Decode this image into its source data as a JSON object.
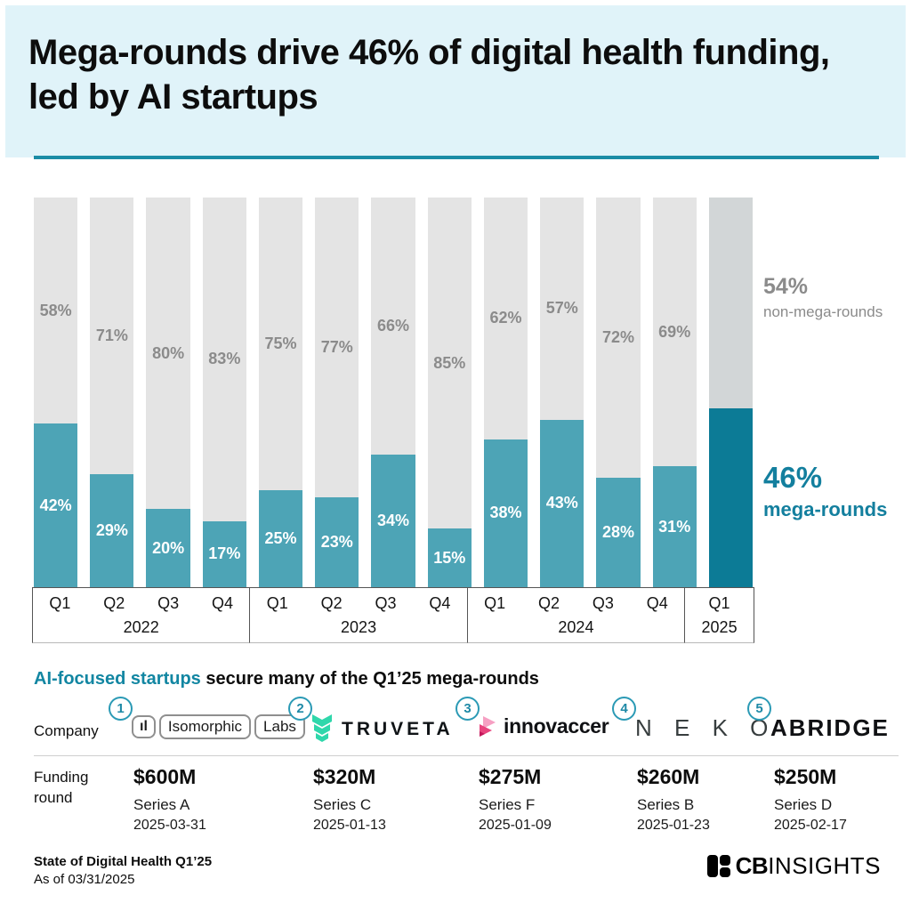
{
  "header": {
    "title": "Mega-rounds drive 46% of digital health funding, led by AI startups"
  },
  "colors": {
    "header_bg": "#e0f3f9",
    "accent_rule": "#1b8ca6",
    "mega_bar": "#4da4b6",
    "mega_bar_highlight": "#0c7b96",
    "non_mega_bar": "#e4e4e4",
    "non_mega_bar_highlight": "#d2d6d7",
    "gray_label": "#8b8b8b",
    "teal_text": "#137f9e"
  },
  "chart_data": {
    "type": "bar",
    "stacked": true,
    "unit": "%",
    "ylim": [
      0,
      100
    ],
    "grid": false,
    "legend_position": "right",
    "x": [
      "Q1 2022",
      "Q2 2022",
      "Q3 2022",
      "Q4 2022",
      "Q1 2023",
      "Q2 2023",
      "Q3 2023",
      "Q4 2023",
      "Q1 2024",
      "Q2 2024",
      "Q3 2024",
      "Q4 2024",
      "Q1 2025"
    ],
    "year_groups": [
      {
        "year": "2022",
        "quarters": [
          "Q1",
          "Q2",
          "Q3",
          "Q4"
        ]
      },
      {
        "year": "2023",
        "quarters": [
          "Q1",
          "Q2",
          "Q3",
          "Q4"
        ]
      },
      {
        "year": "2024",
        "quarters": [
          "Q1",
          "Q2",
          "Q3",
          "Q4"
        ]
      },
      {
        "year": "2025",
        "quarters": [
          "Q1"
        ]
      }
    ],
    "series": [
      {
        "name": "mega-rounds",
        "values": [
          42,
          29,
          20,
          17,
          25,
          23,
          34,
          15,
          38,
          43,
          28,
          31,
          46
        ]
      },
      {
        "name": "non-mega-rounds",
        "values": [
          58,
          71,
          80,
          83,
          75,
          77,
          66,
          85,
          62,
          57,
          72,
          69,
          54
        ]
      }
    ],
    "highlight_index": 12,
    "hide_labels_index": 12,
    "legend": {
      "non_mega": {
        "value": "54%",
        "label": "non-mega-rounds"
      },
      "mega": {
        "value": "46%",
        "label": "mega-rounds"
      }
    }
  },
  "companies_section": {
    "heading_highlight": "AI-focused startups",
    "heading_rest": " secure many of the Q1’25 mega-rounds",
    "company_row_label": "Company",
    "funding_row_label": "Funding round",
    "items": [
      {
        "rank": "1",
        "name": "Isomorphic Labs",
        "logo_mark": "ıl",
        "logo_word1": "Isomorphic",
        "logo_word2": "Labs",
        "amount": "$600M",
        "series": "Series A",
        "date": "2025-03-31"
      },
      {
        "rank": "2",
        "name": "Truveta",
        "logo_text": "TRUVETA",
        "amount": "$320M",
        "series": "Series C",
        "date": "2025-01-13"
      },
      {
        "rank": "3",
        "name": "Innovaccer",
        "logo_text": "innovaccer",
        "amount": "$275M",
        "series": "Series F",
        "date": "2025-01-09"
      },
      {
        "rank": "4",
        "name": "Neko",
        "logo_text": "N E K O",
        "amount": "$260M",
        "series": "Series B",
        "date": "2025-01-23"
      },
      {
        "rank": "5",
        "name": "Abridge",
        "logo_text": "ABRIDGE",
        "amount": "$250M",
        "series": "Series D",
        "date": "2025-02-17"
      }
    ]
  },
  "footer": {
    "line1": "State of Digital Health Q1’25",
    "line2": "As of 03/31/2025",
    "brand_bold": "CB",
    "brand_light": "INSIGHTS"
  }
}
